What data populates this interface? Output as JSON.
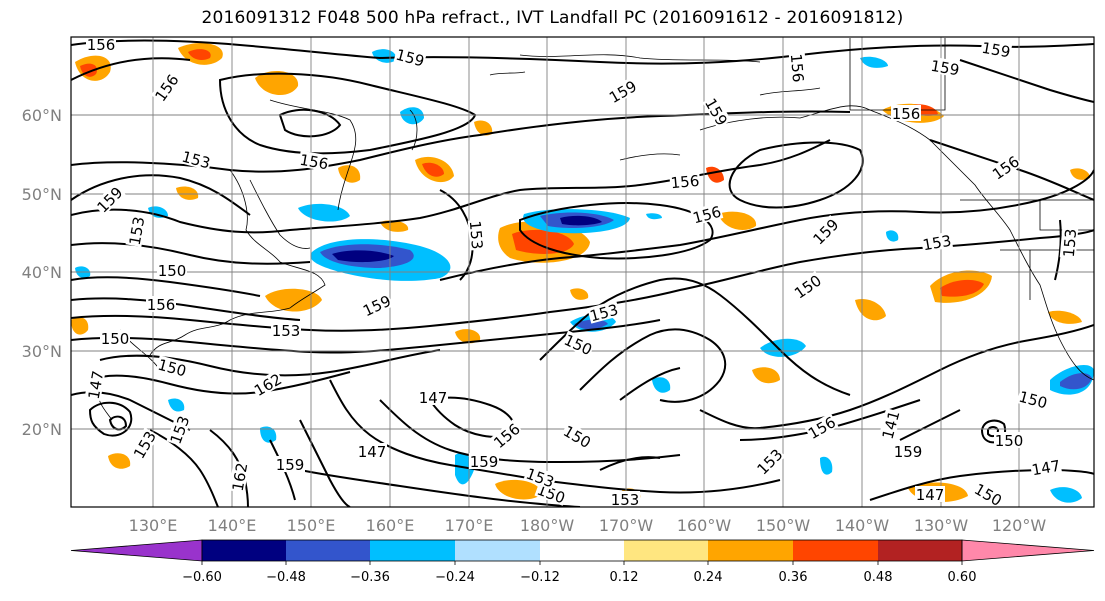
{
  "title": "2016091312 F048 500 hPa refract., IVT Landfall PC (2016091612 - 2016091812)",
  "lat_labels": [
    "60°N",
    "50°N",
    "40°N",
    "30°N",
    "20°N"
  ],
  "lon_labels": [
    "130°E",
    "140°E",
    "150°E",
    "160°E",
    "170°E",
    "180°W",
    "170°W",
    "160°W",
    "150°W",
    "140°W",
    "130°W",
    "120°W"
  ],
  "colorbar": {
    "ticks": [
      "−0.60",
      "−0.48",
      "−0.36",
      "−0.24",
      "−0.12",
      "0.12",
      "0.24",
      "0.36",
      "0.48",
      "0.60"
    ],
    "colors": [
      "#9933cc",
      "#000080",
      "#3355cc",
      "#00bfff",
      "#b0e0ff",
      "#ffffff",
      "#ffe680",
      "#ffa500",
      "#ff4500",
      "#b22222",
      "#ff88aa"
    ]
  },
  "contour_labels": [
    "156",
    "156",
    "159",
    "159",
    "156",
    "159",
    "159",
    "159",
    "156",
    "153",
    "156",
    "156",
    "159",
    "156",
    "153",
    "156",
    "159",
    "153",
    "153",
    "150",
    "159",
    "153",
    "156",
    "150",
    "153",
    "150",
    "150",
    "153",
    "147",
    "162",
    "150",
    "153",
    "147",
    "156",
    "150",
    "159",
    "147",
    "159",
    "162",
    "156",
    "153",
    "150",
    "147",
    "153",
    "150",
    "153",
    "159",
    "153",
    "141",
    "150",
    "147",
    "150"
  ],
  "colors": {
    "contour": "#000000",
    "grid": "#808080",
    "coast": "#000000"
  }
}
